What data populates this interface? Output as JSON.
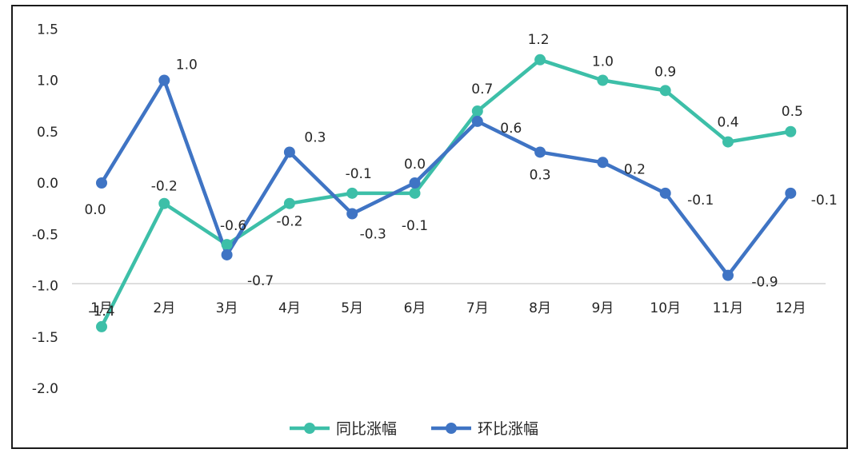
{
  "chart_data": {
    "type": "line",
    "title": "",
    "xlabel": "",
    "ylabel": "",
    "categories": [
      "1月",
      "2月",
      "3月",
      "4月",
      "5月",
      "6月",
      "7月",
      "8月",
      "9月",
      "10月",
      "11月",
      "12月"
    ],
    "y_ticks": [
      "1.5",
      "1.0",
      "0.5",
      "0.0",
      "-0.5",
      "-1.0",
      "-1.5",
      "-2.0"
    ],
    "ylim": [
      -2.0,
      1.5
    ],
    "grid": false,
    "legend_position": "bottom",
    "series": [
      {
        "name": "同比涨幅",
        "color": "#3dbfa8",
        "values": [
          -1.4,
          -0.2,
          -0.6,
          -0.2,
          -0.1,
          -0.1,
          0.7,
          1.2,
          1.0,
          0.9,
          0.4,
          0.5
        ],
        "labels": [
          "-1.4",
          "-0.2",
          "-0.6",
          "-0.2",
          "-0.1",
          "-0.1",
          "0.7",
          "1.2",
          "1.0",
          "0.9",
          "0.4",
          "0.5"
        ]
      },
      {
        "name": "环比涨幅",
        "color": "#3f74c4",
        "values": [
          0.0,
          1.0,
          -0.7,
          0.3,
          -0.3,
          0.0,
          0.6,
          0.3,
          0.2,
          -0.1,
          -0.9,
          -0.1
        ],
        "labels": [
          "0.0",
          "1.0",
          "-0.7",
          "0.3",
          "-0.3",
          "0.0",
          "0.6",
          "0.3",
          "0.2",
          "-0.1",
          "-0.9",
          "-0.1"
        ]
      }
    ]
  }
}
